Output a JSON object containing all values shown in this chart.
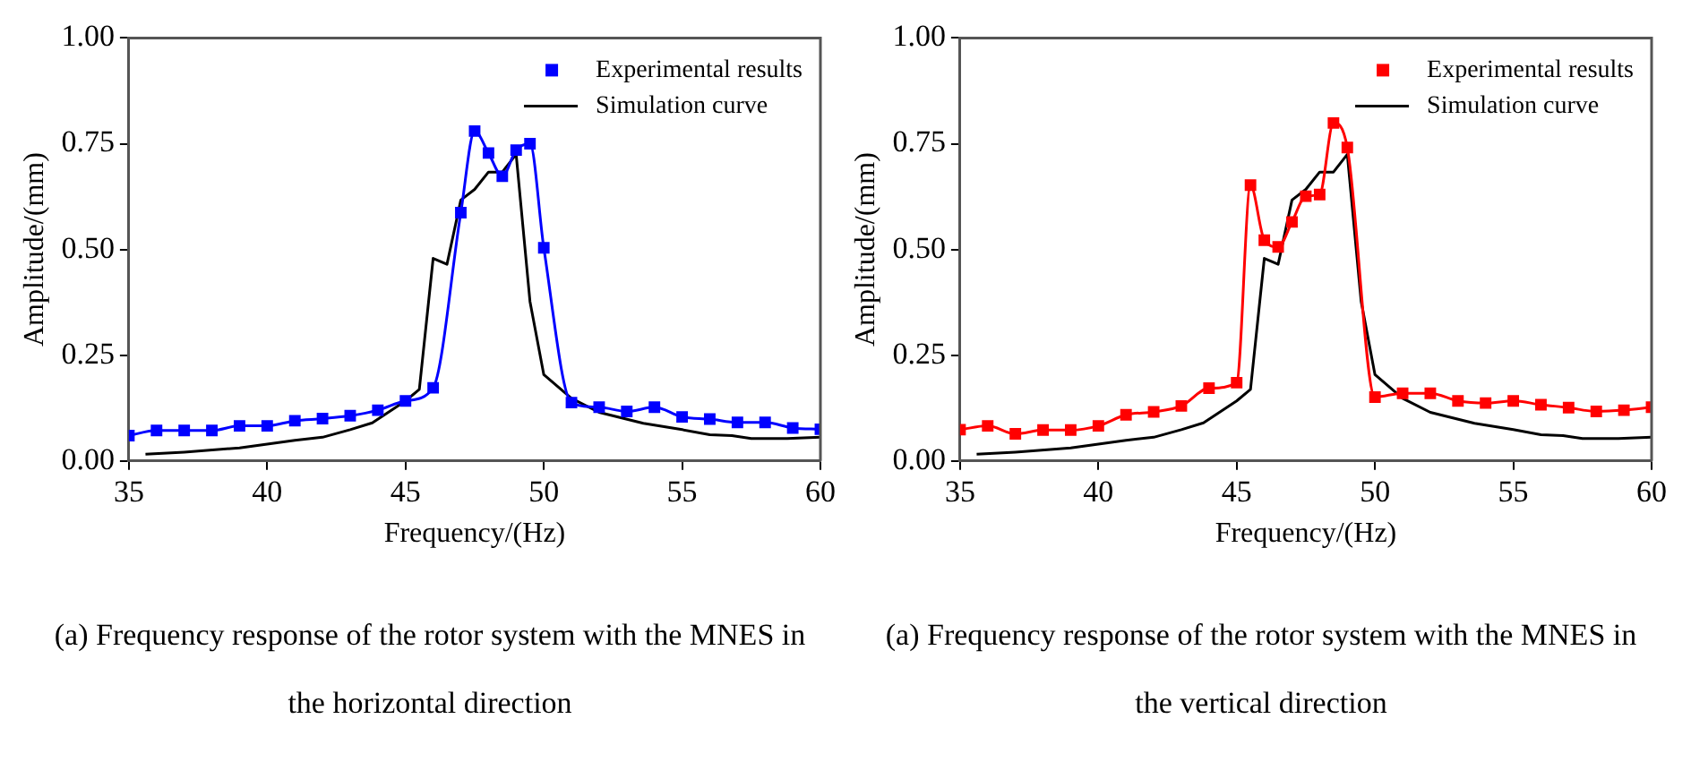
{
  "chart_data": [
    {
      "type": "line",
      "xlabel": "Frequency/(Hz)",
      "ylabel": "Amplitude/(mm)",
      "xlim": [
        35,
        60
      ],
      "xticks": [
        35,
        40,
        45,
        50,
        55,
        60
      ],
      "ylim": [
        0,
        1
      ],
      "yticks": [
        {
          "value": 0,
          "label": "0.00"
        },
        {
          "value": 0.25,
          "label": "0.25"
        },
        {
          "value": 0.5,
          "label": "0.50"
        },
        {
          "value": 0.75,
          "label": "0.75"
        },
        {
          "value": 1,
          "label": "1.00"
        }
      ],
      "grid": false,
      "legend": "top right",
      "annotations": [
        "(a) Frequency response of the rotor system with the MNES in the horizontal direction"
      ],
      "series": [
        {
          "name": "Experimental results",
          "color": "#0000ff",
          "marker": "square",
          "line_style": "solid",
          "x": [
            35,
            36,
            37,
            38,
            39,
            40,
            41,
            42,
            43,
            44,
            45,
            46,
            47,
            47.5,
            48,
            48.5,
            49,
            49.5,
            50,
            51,
            52,
            53,
            54,
            55,
            56,
            57,
            58,
            59,
            60
          ],
          "values": [
            0.06,
            0.072,
            0.072,
            0.072,
            0.083,
            0.083,
            0.095,
            0.1,
            0.107,
            0.12,
            0.142,
            0.173,
            0.587,
            0.78,
            0.728,
            0.673,
            0.735,
            0.75,
            0.504,
            0.138,
            0.127,
            0.117,
            0.127,
            0.104,
            0.099,
            0.091,
            0.091,
            0.078,
            0.075
          ]
        },
        {
          "name": "Simulation curve",
          "color": "#000000",
          "marker": "none",
          "line_style": "solid",
          "x": [
            35.6,
            37,
            39,
            41,
            42,
            43,
            43.8,
            45,
            45.5,
            46,
            46.5,
            47,
            47.5,
            48,
            48.5,
            49,
            49.5,
            50,
            51,
            52,
            53.6,
            55,
            56,
            56.8,
            57.5,
            58.8,
            60
          ],
          "values": [
            0.016,
            0.021,
            0.031,
            0.049,
            0.056,
            0.074,
            0.09,
            0.142,
            0.169,
            0.479,
            0.465,
            0.617,
            0.642,
            0.683,
            0.683,
            0.725,
            0.377,
            0.204,
            0.148,
            0.115,
            0.089,
            0.074,
            0.062,
            0.06,
            0.053,
            0.053,
            0.056
          ]
        }
      ]
    },
    {
      "type": "line",
      "xlabel": "Frequency/(Hz)",
      "ylabel": "Amplitude/(mm)",
      "xlim": [
        35,
        60
      ],
      "xticks": [
        35,
        40,
        45,
        50,
        55,
        60
      ],
      "ylim": [
        0,
        1
      ],
      "yticks": [
        {
          "value": 0,
          "label": "0.00"
        },
        {
          "value": 0.25,
          "label": "0.25"
        },
        {
          "value": 0.5,
          "label": "0.50"
        },
        {
          "value": 0.75,
          "label": "0.75"
        },
        {
          "value": 1,
          "label": "1.00"
        }
      ],
      "grid": false,
      "legend": "top right",
      "annotations": [
        "(a) Frequency response of the rotor system with the MNES in the vertical direction"
      ],
      "series": [
        {
          "name": "Experimental results",
          "color": "#ff0000",
          "marker": "square",
          "line_style": "solid",
          "x": [
            35,
            36,
            37,
            38,
            39,
            40,
            41,
            42,
            43,
            44,
            45,
            45.5,
            46,
            46.5,
            47,
            47.5,
            48,
            48.5,
            49,
            50,
            51,
            52,
            53,
            54,
            55,
            56,
            57,
            58,
            59,
            60
          ],
          "values": [
            0.074,
            0.083,
            0.064,
            0.073,
            0.073,
            0.083,
            0.109,
            0.116,
            0.13,
            0.172,
            0.185,
            0.652,
            0.522,
            0.506,
            0.565,
            0.626,
            0.63,
            0.799,
            0.741,
            0.151,
            0.16,
            0.16,
            0.142,
            0.137,
            0.142,
            0.133,
            0.126,
            0.117,
            0.12,
            0.127
          ]
        },
        {
          "name": "Simulation curve",
          "color": "#000000",
          "marker": "none",
          "line_style": "solid",
          "x": [
            35.6,
            37,
            39,
            41,
            42,
            43,
            43.8,
            45,
            45.5,
            46,
            46.5,
            47,
            47.5,
            48,
            48.5,
            49,
            49.5,
            50,
            51,
            52,
            53.6,
            55,
            56,
            56.8,
            57.5,
            58.8,
            60
          ],
          "values": [
            0.016,
            0.021,
            0.031,
            0.049,
            0.056,
            0.074,
            0.09,
            0.142,
            0.169,
            0.479,
            0.465,
            0.617,
            0.642,
            0.683,
            0.683,
            0.725,
            0.377,
            0.204,
            0.148,
            0.115,
            0.089,
            0.074,
            0.062,
            0.06,
            0.053,
            0.053,
            0.056
          ]
        }
      ]
    }
  ]
}
